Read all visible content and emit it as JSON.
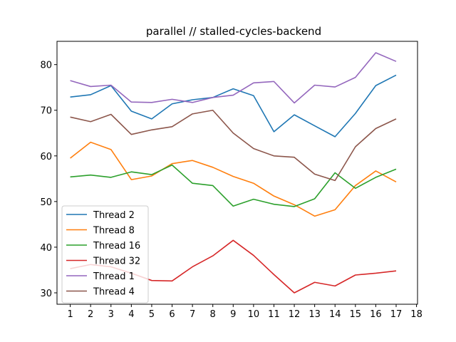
{
  "chart_data": {
    "type": "line",
    "title": "parallel // stalled-cycles-backend",
    "xlabel": "",
    "ylabel": "",
    "x": [
      1,
      2,
      3,
      4,
      5,
      6,
      7,
      8,
      9,
      10,
      11,
      12,
      13,
      14,
      15,
      16,
      17
    ],
    "xticks": [
      1,
      2,
      3,
      4,
      5,
      6,
      7,
      8,
      9,
      10,
      11,
      12,
      13,
      14,
      15,
      16,
      17,
      18
    ],
    "yticks": [
      30,
      40,
      50,
      60,
      70,
      80
    ],
    "xlim": [
      0.35,
      18.05
    ],
    "ylim": [
      27.5,
      85.1
    ],
    "grid": false,
    "legend_position": "lower-left",
    "series": [
      {
        "name": "Thread 2",
        "color": "#1f77b4",
        "values": [
          72.9,
          73.4,
          75.4,
          69.8,
          68.1,
          71.4,
          72.3,
          72.8,
          74.7,
          73.2,
          65.3,
          69.0,
          66.6,
          64.2,
          69.3,
          75.4,
          77.7
        ]
      },
      {
        "name": "Thread 8",
        "color": "#ff7f0e",
        "values": [
          59.5,
          63.0,
          61.4,
          54.8,
          55.6,
          58.3,
          59.0,
          57.5,
          55.5,
          54.0,
          51.2,
          49.3,
          46.8,
          48.2,
          53.5,
          56.7,
          54.3
        ]
      },
      {
        "name": "Thread 16",
        "color": "#2ca02c",
        "values": [
          55.4,
          55.8,
          55.3,
          56.5,
          55.9,
          58.0,
          54.0,
          53.5,
          49.0,
          50.5,
          49.4,
          48.9,
          50.6,
          56.3,
          52.9,
          55.3,
          57.1
        ]
      },
      {
        "name": "Thread 32",
        "color": "#d62728",
        "values": [
          35.3,
          36.2,
          35.7,
          34.3,
          32.7,
          32.6,
          35.7,
          38.1,
          41.5,
          38.2,
          34.0,
          30.0,
          32.3,
          31.5,
          33.9,
          34.3,
          34.8
        ]
      },
      {
        "name": "Thread 1",
        "color": "#9467bd",
        "values": [
          76.5,
          75.2,
          75.5,
          71.8,
          71.7,
          72.4,
          71.7,
          72.8,
          73.3,
          76.0,
          76.3,
          71.6,
          75.5,
          75.1,
          77.2,
          82.6,
          80.7
        ]
      },
      {
        "name": "Thread 4",
        "color": "#8c564b",
        "values": [
          68.5,
          67.5,
          69.1,
          64.7,
          65.7,
          66.4,
          69.2,
          70.0,
          65.0,
          61.6,
          60.0,
          59.7,
          56.0,
          54.6,
          62.0,
          66.0,
          68.1
        ]
      }
    ]
  }
}
